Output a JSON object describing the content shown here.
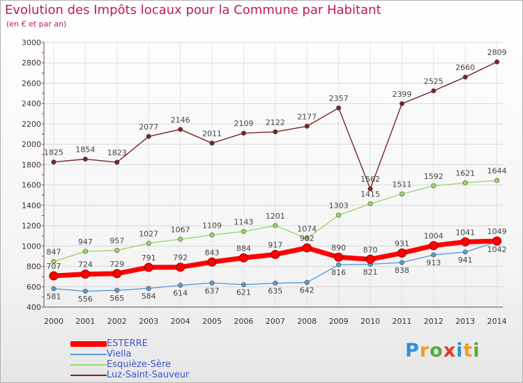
{
  "title": "Evolution des Impôts locaux pour la Commune par Habitant",
  "subtitle": "(en € et par an)",
  "brand": {
    "letters": [
      "P",
      "r",
      "o",
      "x",
      "i",
      "t",
      "i"
    ],
    "colors": [
      "#2f8fd6",
      "#f29b1f",
      "#5aa83a",
      "#e03a2a",
      "#2f8fd6",
      "#f29b1f",
      "#5aa83a"
    ]
  },
  "chart_data": {
    "type": "line",
    "x": [
      "2000",
      "2001",
      "2002",
      "2003",
      "2004",
      "2005",
      "2006",
      "2007",
      "2008",
      "2009",
      "2010",
      "2011",
      "2012",
      "2013",
      "2014"
    ],
    "ylim": [
      400,
      3000
    ],
    "yticks": [
      "400",
      "600",
      "800",
      "1000",
      "1200",
      "1400",
      "1600",
      "1800",
      "2000",
      "2200",
      "2400",
      "2600",
      "2800",
      "3000"
    ],
    "grid": true,
    "legend_position": "bottom-left",
    "series": [
      {
        "name": "ESTERRE",
        "color": "#ff0000",
        "values": [
          707,
          724,
          729,
          791,
          792,
          843,
          884,
          917,
          982,
          890,
          870,
          931,
          1004,
          1041,
          1049
        ],
        "labels": [
          "707",
          "724",
          "729",
          "791",
          "792",
          "843",
          "884",
          "917",
          "982",
          "890",
          "870",
          "931",
          "1004",
          "1041",
          "1049"
        ]
      },
      {
        "name": "Viella",
        "color": "#5b9bd5",
        "values": [
          581,
          556,
          565,
          584,
          614,
          637,
          621,
          635,
          642,
          816,
          821,
          838,
          913,
          941,
          1042
        ],
        "labels": [
          "581",
          "556",
          "565",
          "584",
          "614",
          "637",
          "621",
          "635",
          "642",
          "816",
          "821",
          "838",
          "913",
          "941",
          "1042"
        ]
      },
      {
        "name": "Esquièze-Sère",
        "color": "#9ad66e",
        "values": [
          847,
          947,
          957,
          1027,
          1067,
          1109,
          1143,
          1201,
          1074,
          1303,
          1415,
          1511,
          1592,
          1621,
          1644
        ],
        "labels": [
          "847",
          "947",
          "957",
          "1027",
          "1067",
          "1109",
          "1143",
          "1201",
          "1074",
          "1303",
          "1415",
          "1511",
          "1592",
          "1621",
          "1644"
        ]
      },
      {
        "name": "Luz-Saint-Sauveur",
        "color": "#7a2424",
        "values": [
          1825,
          1854,
          1823,
          2077,
          2146,
          2011,
          2109,
          2122,
          2177,
          2357,
          1562,
          2399,
          2525,
          2660,
          2809
        ],
        "labels": [
          "1825",
          "1854",
          "1823",
          "2077",
          "2146",
          "2011",
          "2109",
          "2122",
          "2177",
          "2357",
          "1562",
          "2399",
          "2525",
          "2660",
          "2809"
        ]
      }
    ]
  }
}
